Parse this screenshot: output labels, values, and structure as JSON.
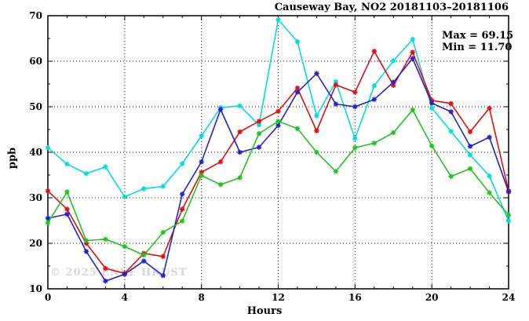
{
  "chart_data": {
    "type": "line",
    "title": "Causeway Bay, NO2 20181103–20181106",
    "xlabel": "Hours",
    "ylabel": "ppb",
    "xlim": [
      0,
      24
    ],
    "ylim": [
      10,
      70
    ],
    "x_major_ticks": [
      0,
      4,
      8,
      12,
      16,
      20,
      24
    ],
    "x_minor_step": 1,
    "y_major_ticks": [
      10,
      20,
      30,
      40,
      50,
      60,
      70
    ],
    "y_minor_step": 5,
    "grid": "dotted",
    "legend_position": "none",
    "annotations": {
      "max_label": "Max = 69.15",
      "min_label": "Min = 11.70"
    },
    "watermark": "© 2025 ENVF HKUST",
    "x": [
      0,
      1,
      2,
      3,
      4,
      5,
      6,
      7,
      8,
      9,
      10,
      11,
      12,
      13,
      14,
      15,
      16,
      17,
      18,
      19,
      20,
      21,
      22,
      23,
      24
    ],
    "series": [
      {
        "name": "cyan-line",
        "color": "#00dcdc",
        "values": [
          41.0,
          37.4,
          35.3,
          36.8,
          30.2,
          32.0,
          32.5,
          37.5,
          43.6,
          49.8,
          50.2,
          46.0,
          69.15,
          64.3,
          48.0,
          55.5,
          43.0,
          54.6,
          60.1,
          64.8,
          49.7,
          44.6,
          39.4,
          34.8,
          24.9
        ]
      },
      {
        "name": "red-line",
        "color": "#e01010",
        "values": [
          31.5,
          27.5,
          20.0,
          14.5,
          13.4,
          17.8,
          17.1,
          27.5,
          35.6,
          37.9,
          44.5,
          46.8,
          49.0,
          54.1,
          44.7,
          54.8,
          53.2,
          62.2,
          54.7,
          62.0,
          51.4,
          50.7,
          44.5,
          49.7,
          31.5
        ]
      },
      {
        "name": "blue-line",
        "color": "#2323cb",
        "values": [
          25.5,
          26.4,
          18.2,
          11.7,
          13.2,
          16.1,
          12.9,
          30.8,
          37.9,
          49.4,
          40.0,
          41.1,
          45.9,
          53.2,
          57.3,
          50.6,
          50.0,
          51.6,
          55.4,
          60.6,
          50.8,
          48.9,
          41.3,
          43.3,
          31.3
        ]
      },
      {
        "name": "green-line",
        "color": "#21c421",
        "values": [
          24.5,
          31.3,
          20.6,
          20.9,
          19.3,
          17.4,
          22.4,
          24.9,
          34.9,
          32.9,
          34.4,
          44.1,
          46.8,
          45.2,
          40.0,
          35.8,
          41.0,
          42.0,
          44.3,
          49.3,
          41.4,
          34.7,
          36.4,
          31.1,
          26.2
        ]
      }
    ]
  }
}
